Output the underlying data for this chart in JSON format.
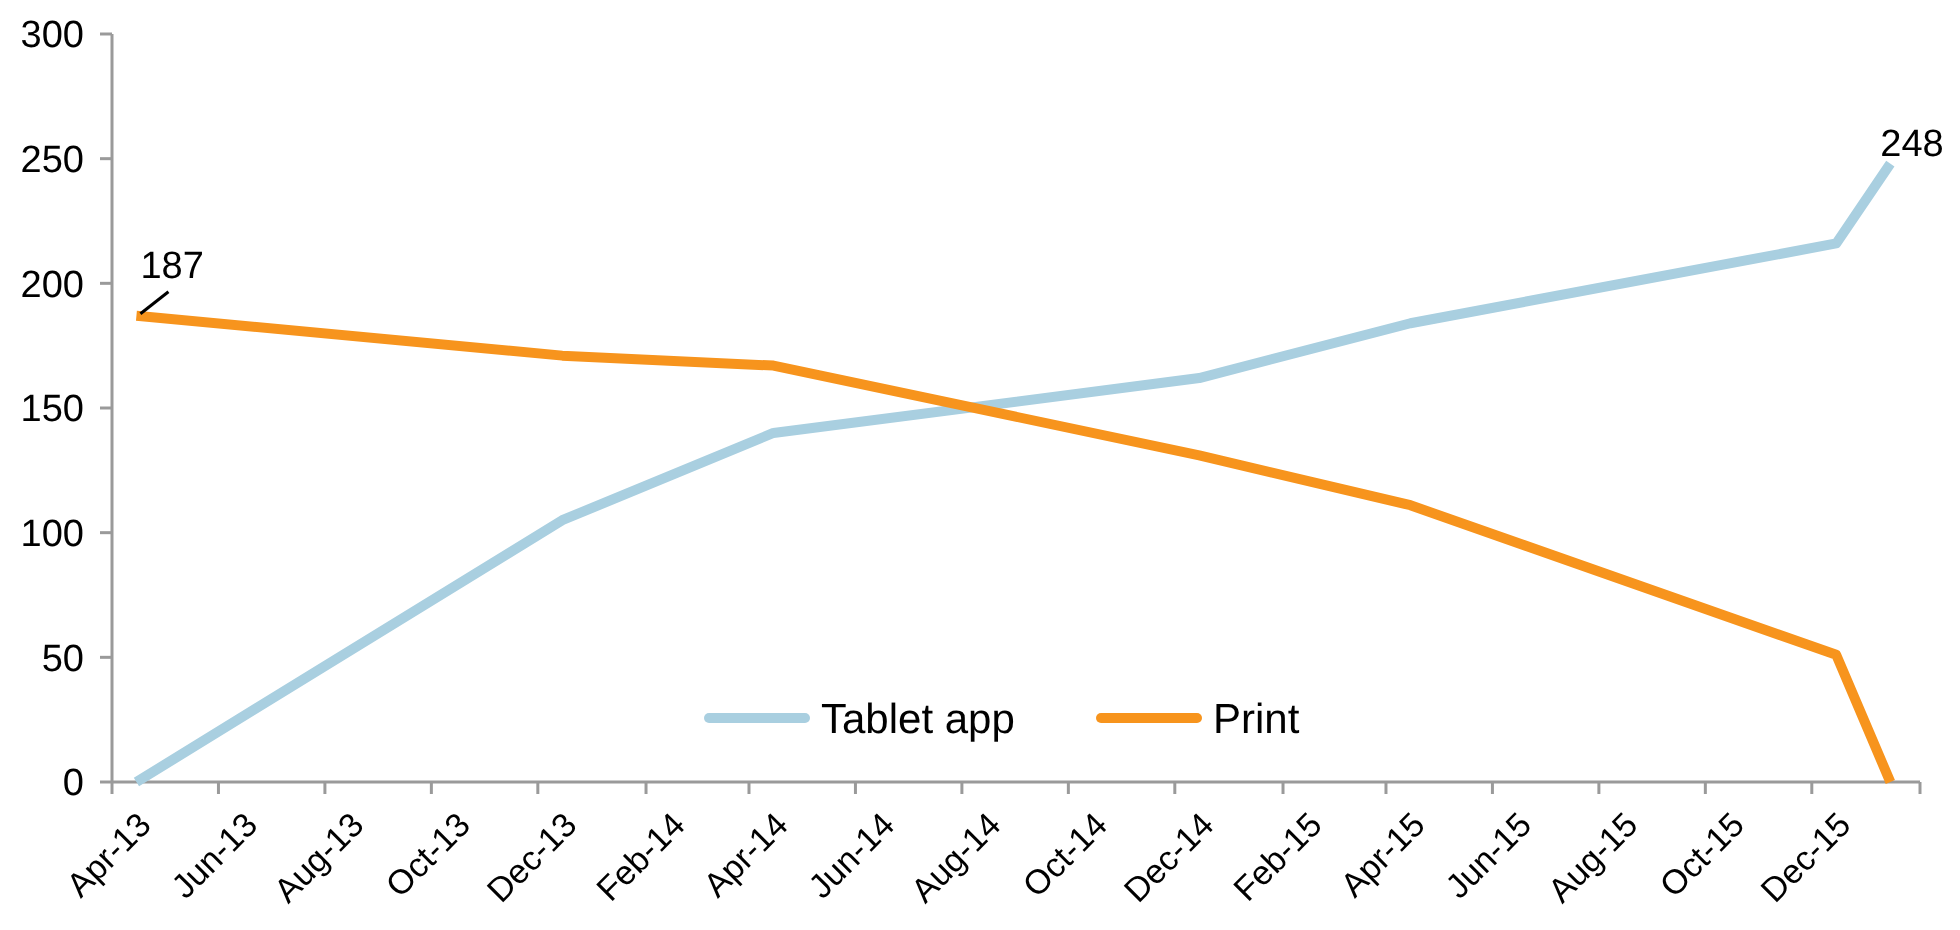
{
  "chart_data": {
    "type": "line",
    "x": [
      "2013-04-15",
      "2013-12-15",
      "2014-04-15",
      "2014-12-15",
      "2015-04-15",
      "2015-12-15",
      "2016-01-15"
    ],
    "xlim": [
      "2013-04",
      "2016-02"
    ],
    "xticks": [
      {
        "value": "2013-04",
        "label": "Apr-13"
      },
      {
        "value": "2013-06",
        "label": "Jun-13"
      },
      {
        "value": "2013-08",
        "label": "Aug-13"
      },
      {
        "value": "2013-10",
        "label": "Oct-13"
      },
      {
        "value": "2013-12",
        "label": "Dec-13"
      },
      {
        "value": "2014-02",
        "label": "Feb-14"
      },
      {
        "value": "2014-04",
        "label": "Apr-14"
      },
      {
        "value": "2014-06",
        "label": "Jun-14"
      },
      {
        "value": "2014-08",
        "label": "Aug-14"
      },
      {
        "value": "2014-10",
        "label": "Oct-14"
      },
      {
        "value": "2014-12",
        "label": "Dec-14"
      },
      {
        "value": "2015-02",
        "label": "Feb-15"
      },
      {
        "value": "2015-04",
        "label": "Apr-15"
      },
      {
        "value": "2015-06",
        "label": "Jun-15"
      },
      {
        "value": "2015-08",
        "label": "Aug-15"
      },
      {
        "value": "2015-10",
        "label": "Oct-15"
      },
      {
        "value": "2015-12",
        "label": "Dec-15"
      },
      {
        "value": "2016-02",
        "label": null
      }
    ],
    "ylim": [
      0,
      300
    ],
    "yticks": [
      0,
      50,
      100,
      150,
      200,
      250,
      300
    ],
    "legend": "bottom",
    "series": [
      {
        "name": "Tablet app",
        "color": "#a9cfe0",
        "values": [
          0,
          105,
          140,
          162,
          184,
          216,
          248
        ],
        "value_labels": [
          null,
          null,
          null,
          null,
          null,
          null,
          "248"
        ]
      },
      {
        "name": "Print",
        "color": "#f7941d",
        "values": [
          187,
          171,
          167,
          131,
          111,
          51,
          0
        ],
        "value_labels": [
          "187",
          null,
          null,
          null,
          null,
          null,
          null
        ]
      }
    ]
  }
}
